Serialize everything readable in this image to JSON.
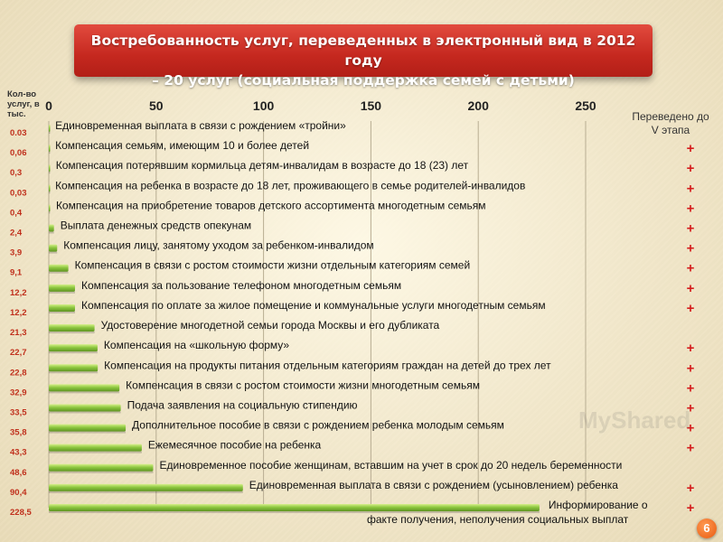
{
  "title": {
    "line1": "Востребованность услуг, переведенных в электронный вид в 2012 году",
    "line2": "– 20 услуг (социальная поддержка семей с детьми)"
  },
  "y_header": "Кол-во услуг, в тыс.",
  "right_header": "Переведено до V этапа",
  "watermark": "MyShared",
  "page_number": "6",
  "colors": {
    "bar": "#8cc63f",
    "bar_dark": "#5f9422",
    "value_text": "#c0301c",
    "plus": "#d51c1c",
    "banner": "#c9291f"
  },
  "chart_data": {
    "type": "bar",
    "orientation": "horizontal",
    "title": "Востребованность услуг, переведенных в электронный вид в 2012 году – 20 услуг (социальная поддержка семей с детьми)",
    "ylabel": "Кол-во услуг, в тыс.",
    "xlim": [
      0,
      250
    ],
    "x_ticks": [
      "0",
      "50",
      "100",
      "150",
      "200",
      "250"
    ],
    "grid": true,
    "categories": [
      "Единовременная выплата в связи с рождением «тройни»",
      "Компенсация семьям, имеющим 10 и более детей",
      "Компенсация потерявшим кормильца детям-инвалидам в возрасте до 18 (23) лет",
      "Компенсация  на ребенка в возрасте до 18 лет, проживающего в семье родителей-инвалидов",
      "Компенсация на приобретение товаров детского ассортимента многодетным семьям",
      "Выплата денежных средств опекунам",
      "Компенсация  лицу, занятому уходом за ребенком-инвалидом",
      "Компенсация  в связи с ростом стоимости жизни отдельным категориям семей",
      "Компенсация за пользование телефоном многодетным семьям",
      "Компенсация по оплате за жилое помещение и коммунальные услуги многодетным семьям",
      "Удостоверение многодетной семьи города Москвы и его дубликата",
      "Компенсация на «школьную форму»",
      "Компенсация  на продукты питания отдельным категориям граждан на детей  до трех  лет",
      "Компенсация  в связи с ростом стоимости жизни многодетным семьям",
      "Подача заявления на социальную стипендию",
      "Дополнительное пособие в связи с рождением ребенка молодым семьям",
      "Ежемесячное пособие  на ребенка",
      "Единовременное пособие женщинам, вставшим на учет в срок до 20 недель беременности",
      "Единовременная выплата в связи с рождением (усыновлением) ребенка",
      "Информирование о факте получения, неполучения социальных выплат"
    ],
    "values": [
      0.03,
      0.06,
      0.3,
      0.03,
      0.4,
      2.4,
      3.9,
      9.1,
      12.2,
      12.2,
      21.3,
      22.7,
      22.8,
      32.9,
      33.5,
      35.8,
      43.3,
      48.6,
      90.4,
      228.5
    ],
    "value_labels": [
      "0.03",
      "0,06",
      "0,3",
      "0,03",
      "0,4",
      "2,4",
      "3,9",
      "9,1",
      "12,2",
      "12,2",
      "21,3",
      "22,7",
      "22,8",
      "32,9",
      "33,5",
      "35,8",
      "43,3",
      "48,6",
      "90,4",
      "228,5"
    ],
    "transferred_mark": [
      "",
      "+",
      "+",
      "+",
      "+",
      "+",
      "+",
      "+",
      "+",
      "+",
      "",
      "+",
      "+",
      "+",
      "+",
      "+",
      "+",
      "",
      "+",
      "+"
    ]
  }
}
